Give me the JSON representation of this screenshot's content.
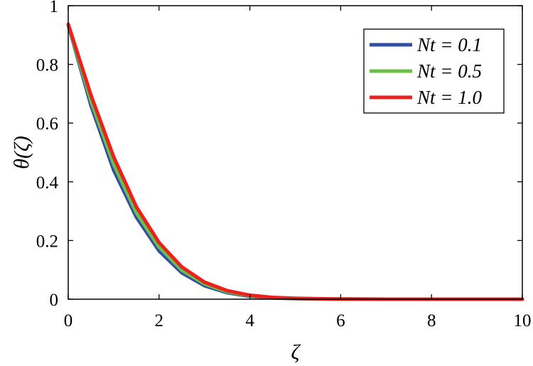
{
  "chart_data": {
    "type": "line",
    "title": "",
    "xlabel": "ζ",
    "ylabel": "θ(ζ)",
    "xlim": [
      0,
      10
    ],
    "ylim": [
      0,
      1
    ],
    "xticks": [
      "0",
      "2",
      "4",
      "6",
      "8",
      "10"
    ],
    "yticks": [
      "0",
      "0.2",
      "0.4",
      "0.6",
      "0.8",
      "1"
    ],
    "grid": false,
    "legend_position": "top-right",
    "x": [
      0,
      0.5,
      1,
      1.5,
      2,
      2.5,
      3,
      3.5,
      4,
      4.5,
      5,
      5.5,
      6,
      7,
      8,
      9,
      10
    ],
    "series": [
      {
        "name": "Nt = 0.1",
        "color": "#2e4fa3",
        "values": [
          0.935,
          0.66,
          0.44,
          0.28,
          0.165,
          0.09,
          0.046,
          0.022,
          0.01,
          0.0045,
          0.002,
          0.001,
          0.0005,
          0.0001,
          0,
          0,
          0
        ]
      },
      {
        "name": "Nt = 0.5",
        "color": "#6dbf45",
        "values": [
          0.936,
          0.675,
          0.46,
          0.295,
          0.178,
          0.099,
          0.052,
          0.025,
          0.012,
          0.0055,
          0.0025,
          0.0012,
          0.0006,
          0.0001,
          0,
          0,
          0
        ]
      },
      {
        "name": "Nt = 1.0",
        "color": "#e8231f",
        "values": [
          0.937,
          0.695,
          0.485,
          0.315,
          0.193,
          0.11,
          0.058,
          0.029,
          0.0135,
          0.006,
          0.0028,
          0.0014,
          0.0007,
          0.0001,
          0,
          0,
          0
        ]
      }
    ]
  }
}
